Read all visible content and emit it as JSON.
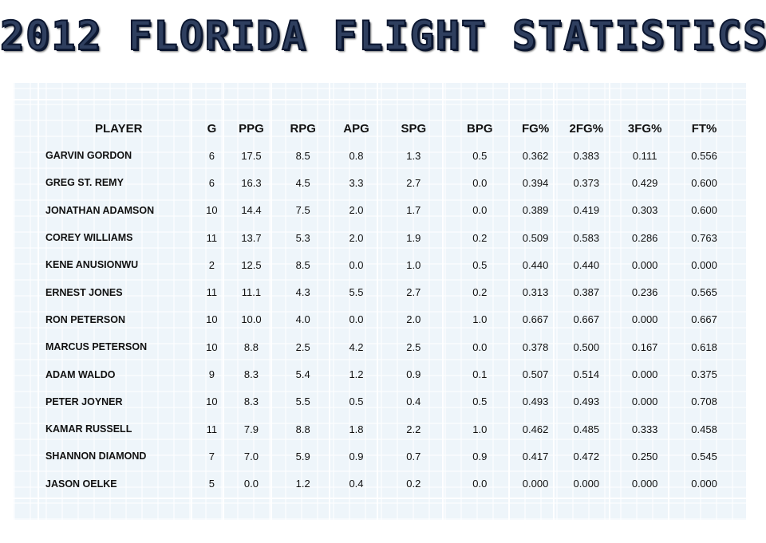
{
  "title": "2012 FLORIDA FLIGHT STATISTICS",
  "table": {
    "headers": [
      "PLAYER",
      "G",
      "PPG",
      "RPG",
      "APG",
      "SPG",
      "BPG",
      "FG%",
      "2FG%",
      "3FG%",
      "FT%"
    ],
    "rows": [
      [
        "GARVIN GORDON",
        "6",
        "17.5",
        "8.5",
        "0.8",
        "1.3",
        "0.5",
        "0.362",
        "0.383",
        "0.111",
        "0.556"
      ],
      [
        "GREG ST. REMY",
        "6",
        "16.3",
        "4.5",
        "3.3",
        "2.7",
        "0.0",
        "0.394",
        "0.373",
        "0.429",
        "0.600"
      ],
      [
        "JONATHAN ADAMSON",
        "10",
        "14.4",
        "7.5",
        "2.0",
        "1.7",
        "0.0",
        "0.389",
        "0.419",
        "0.303",
        "0.600"
      ],
      [
        "COREY WILLIAMS",
        "11",
        "13.7",
        "5.3",
        "2.0",
        "1.9",
        "0.2",
        "0.509",
        "0.583",
        "0.286",
        "0.763"
      ],
      [
        "KENE ANUSIONWU",
        "2",
        "12.5",
        "8.5",
        "0.0",
        "1.0",
        "0.5",
        "0.440",
        "0.440",
        "0.000",
        "0.000"
      ],
      [
        "ERNEST JONES",
        "11",
        "11.1",
        "4.3",
        "5.5",
        "2.7",
        "0.2",
        "0.313",
        "0.387",
        "0.236",
        "0.565"
      ],
      [
        "RON PETERSON",
        "10",
        "10.0",
        "4.0",
        "0.0",
        "2.0",
        "1.0",
        "0.667",
        "0.667",
        "0.000",
        "0.667"
      ],
      [
        "MARCUS PETERSON",
        "10",
        "8.8",
        "2.5",
        "4.2",
        "2.5",
        "0.0",
        "0.378",
        "0.500",
        "0.167",
        "0.618"
      ],
      [
        "ADAM WALDO",
        "9",
        "8.3",
        "5.4",
        "1.2",
        "0.9",
        "0.1",
        "0.507",
        "0.514",
        "0.000",
        "0.375"
      ],
      [
        "PETER JOYNER",
        "10",
        "8.3",
        "5.5",
        "0.5",
        "0.4",
        "0.5",
        "0.493",
        "0.493",
        "0.000",
        "0.708"
      ],
      [
        "KAMAR RUSSELL",
        "11",
        "7.9",
        "8.8",
        "1.8",
        "2.2",
        "1.0",
        "0.462",
        "0.485",
        "0.333",
        "0.458"
      ],
      [
        "SHANNON DIAMOND",
        "7",
        "7.0",
        "5.9",
        "0.9",
        "0.7",
        "0.9",
        "0.417",
        "0.472",
        "0.250",
        "0.545"
      ],
      [
        "JASON OELKE",
        "5",
        "0.0",
        "1.2",
        "0.4",
        "0.2",
        "0.0",
        "0.000",
        "0.000",
        "0.000",
        "0.000"
      ]
    ]
  }
}
